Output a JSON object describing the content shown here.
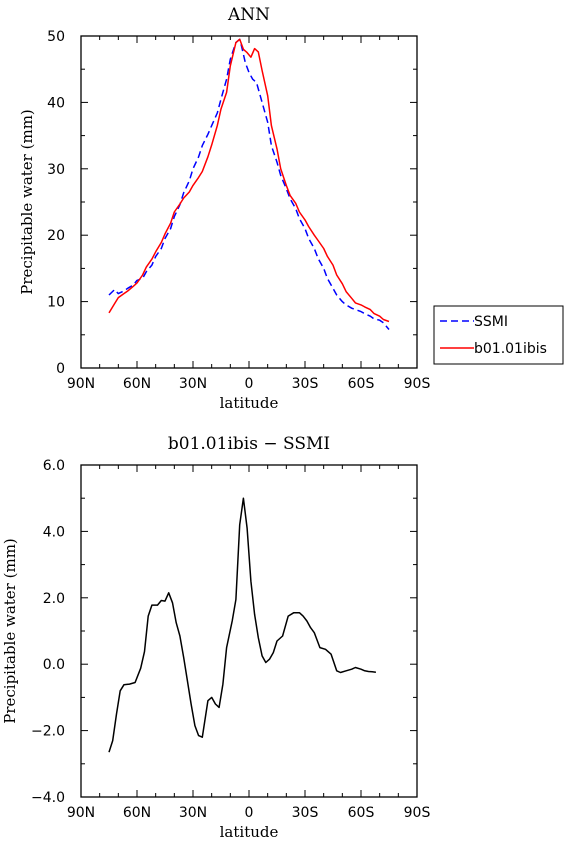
{
  "chart_data": [
    {
      "type": "line",
      "title": "ANN",
      "xlabel": "latitude",
      "ylabel": "Precipitable water (mm)",
      "xlim": [
        90,
        -90
      ],
      "ylim": [
        0,
        50
      ],
      "xticks": [
        90,
        60,
        30,
        0,
        -30,
        -60,
        -90
      ],
      "xtick_labels": [
        "90N",
        "60N",
        "30N",
        "0",
        "30S",
        "60S",
        "90S"
      ],
      "yticks": [
        0,
        10,
        20,
        30,
        40,
        50
      ],
      "ytick_labels": [
        "0",
        "10",
        "20",
        "30",
        "40",
        "50"
      ],
      "legend_position": "right-bottom",
      "series": [
        {
          "name": "SSMI",
          "color": "#0000ff",
          "dash": "dashed",
          "x": [
            75,
            72,
            70,
            67,
            65,
            62,
            60,
            57,
            55,
            52,
            50,
            47,
            45,
            42,
            40,
            37,
            35,
            32,
            30,
            27,
            25,
            22,
            20,
            17,
            15,
            12,
            10,
            7,
            5,
            4,
            2,
            0,
            -2,
            -4,
            -7,
            -10,
            -12,
            -15,
            -17,
            -20,
            -22,
            -25,
            -27,
            -30,
            -32,
            -35,
            -37,
            -40,
            -42,
            -45,
            -47,
            -50,
            -52,
            -55,
            -57,
            -60,
            -62,
            -65,
            -67,
            -70,
            -72,
            -75
          ],
          "y": [
            11.0,
            11.8,
            11.2,
            11.6,
            12.0,
            12.5,
            13.2,
            13.5,
            14.5,
            15.5,
            16.8,
            18.0,
            19.5,
            21.0,
            22.8,
            24.6,
            26.4,
            28.2,
            30.0,
            31.8,
            33.5,
            35.2,
            36.5,
            38.4,
            40.5,
            43.5,
            46.5,
            49.0,
            49.5,
            48.5,
            46.0,
            44.5,
            43.5,
            43.0,
            40.0,
            37.0,
            33.5,
            31.0,
            29.0,
            27.0,
            25.5,
            24.0,
            22.5,
            21.0,
            19.5,
            18.0,
            16.5,
            15.0,
            13.5,
            12.0,
            11.0,
            10.0,
            9.5,
            9.0,
            8.8,
            8.5,
            8.2,
            7.8,
            7.4,
            7.2,
            6.8,
            5.8
          ]
        },
        {
          "name": "b01.01ibis",
          "color": "#ff0000",
          "dash": "solid",
          "x": [
            75,
            72,
            70,
            67,
            65,
            62,
            60,
            57,
            55,
            52,
            50,
            47,
            45,
            42,
            40,
            37,
            35,
            32,
            30,
            27,
            25,
            22,
            20,
            17,
            15,
            12,
            10,
            7,
            5,
            3,
            1,
            -1,
            -3,
            -5,
            -7,
            -10,
            -12,
            -15,
            -17,
            -20,
            -22,
            -25,
            -27,
            -30,
            -32,
            -35,
            -37,
            -40,
            -42,
            -45,
            -47,
            -50,
            -52,
            -55,
            -57,
            -60,
            -62,
            -65,
            -67,
            -70,
            -72,
            -75
          ],
          "y": [
            8.3,
            9.7,
            10.6,
            11.2,
            11.6,
            12.3,
            12.8,
            14.0,
            15.2,
            16.4,
            17.5,
            18.9,
            20.2,
            21.8,
            23.5,
            24.7,
            25.6,
            26.5,
            27.5,
            28.7,
            29.6,
            31.8,
            33.6,
            36.5,
            39.0,
            41.5,
            45.5,
            49.0,
            49.5,
            48.0,
            47.5,
            46.8,
            48.1,
            47.6,
            44.8,
            41.0,
            36.5,
            33.0,
            30.0,
            27.5,
            26.0,
            24.8,
            23.5,
            22.3,
            21.3,
            20.0,
            19.2,
            18.0,
            16.8,
            15.5,
            14.0,
            12.7,
            11.5,
            10.5,
            9.8,
            9.5,
            9.2,
            8.8,
            8.2,
            7.8,
            7.3,
            7.0
          ]
        }
      ]
    },
    {
      "type": "line",
      "title": "b01.01ibis − SSMI",
      "xlabel": "latitude",
      "ylabel": "Precipitable water (mm)",
      "xlim": [
        90,
        -90
      ],
      "ylim": [
        -4,
        6
      ],
      "xticks": [
        90,
        60,
        30,
        0,
        -30,
        -60,
        -90
      ],
      "xtick_labels": [
        "90N",
        "60N",
        "30N",
        "0",
        "30S",
        "60S",
        "90S"
      ],
      "yticks": [
        -4,
        -2,
        0,
        2,
        4,
        6
      ],
      "ytick_labels": [
        "−4.0",
        "−2.0",
        "0.0",
        "2.0",
        "4.0",
        "6.0"
      ],
      "series": [
        {
          "color": "#000000",
          "dash": "solid",
          "x": [
            75,
            73,
            71,
            69,
            67,
            64,
            61,
            58,
            56,
            54,
            52,
            49,
            47,
            45,
            43,
            41,
            39,
            37,
            35,
            33,
            31,
            29,
            27,
            25,
            22,
            20,
            18,
            16,
            14,
            12,
            9,
            7,
            5,
            3,
            1,
            -1,
            -3,
            -5,
            -7,
            -9,
            -11,
            -13,
            -15,
            -18,
            -21,
            -24,
            -27,
            -29,
            -31,
            -33,
            -35,
            -38,
            -41,
            -44,
            -47,
            -49,
            -52,
            -55,
            -57,
            -60,
            -62,
            -64,
            -66,
            -68
          ],
          "y": [
            -2.65,
            -2.3,
            -1.5,
            -0.8,
            -0.62,
            -0.6,
            -0.55,
            -0.12,
            0.38,
            1.45,
            1.78,
            1.78,
            1.92,
            1.9,
            2.15,
            1.85,
            1.25,
            0.85,
            0.2,
            -0.5,
            -1.2,
            -1.85,
            -2.15,
            -2.2,
            -1.1,
            -1.0,
            -1.2,
            -1.3,
            -0.6,
            0.5,
            1.3,
            1.95,
            4.2,
            5.0,
            4.1,
            2.5,
            1.5,
            0.8,
            0.25,
            0.05,
            0.15,
            0.35,
            0.7,
            0.85,
            1.45,
            1.55,
            1.55,
            1.45,
            1.3,
            1.1,
            0.95,
            0.5,
            0.45,
            0.3,
            -0.2,
            -0.25,
            -0.2,
            -0.15,
            -0.1,
            -0.15,
            -0.2,
            -0.22,
            -0.23,
            -0.24
          ]
        }
      ]
    }
  ]
}
